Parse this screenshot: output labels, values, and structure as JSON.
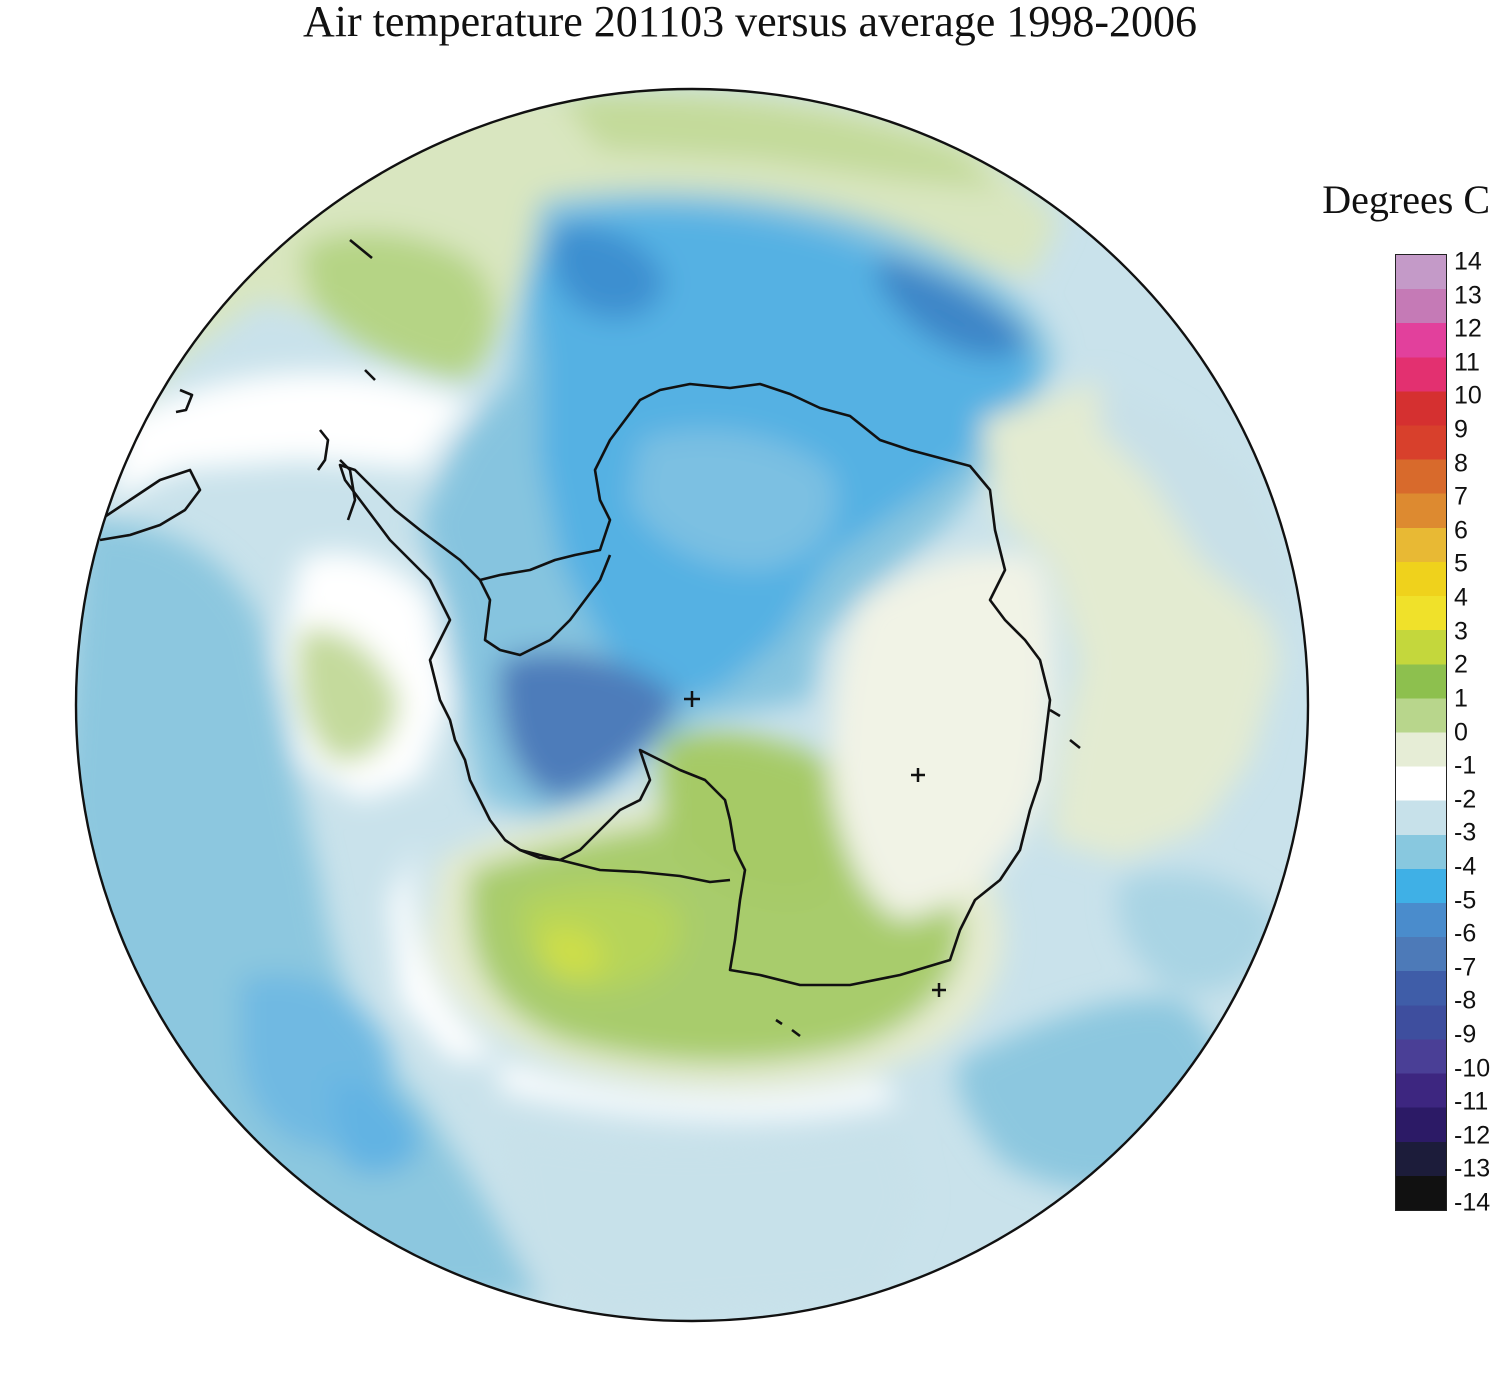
{
  "title": "Air temperature 201103 versus average 1998-2006",
  "legend": {
    "title": "Degrees C",
    "ticks": [
      "14",
      "13",
      "12",
      "11",
      "10",
      "9",
      "8",
      "7",
      "6",
      "5",
      "4",
      "3",
      "2",
      "1",
      "0",
      "-1",
      "-2",
      "-3",
      "-4",
      "-5",
      "-6",
      "-7",
      "-8",
      "-9",
      "-10",
      "-11",
      "-12",
      "-13",
      "-14"
    ],
    "range": [
      -14,
      14
    ],
    "colors": [
      "#111111",
      "#1c1c3a",
      "#2c1a66",
      "#3d2680",
      "#4a3f96",
      "#3e4e9e",
      "#3f5da8",
      "#4d7ab8",
      "#4a8ccc",
      "#3fb0e6",
      "#88c8df",
      "#c7e1ea",
      "#ffffff",
      "#e6edd6",
      "#b8d68c",
      "#8dc04e",
      "#c4d73c",
      "#f0e12a",
      "#efd21c",
      "#e8b934",
      "#dd8a30",
      "#d86a2c",
      "#d8402c",
      "#d53030",
      "#e33070",
      "#e2409c",
      "#c57ab6",
      "#c49ac8"
    ]
  },
  "markers": [
    "plus",
    "plus",
    "plus",
    "plus"
  ],
  "colors": {
    "ocean_white": "#ffffff",
    "light_blue": "#c4e0ea",
    "mid_blue": "#86c3de",
    "blue": "#4aaee0",
    "dark_blue": "#4d7eb9",
    "light_green": "#dce7c6",
    "green": "#9ec561",
    "yellow_green": "#c9d94a",
    "coast": "#111111"
  }
}
